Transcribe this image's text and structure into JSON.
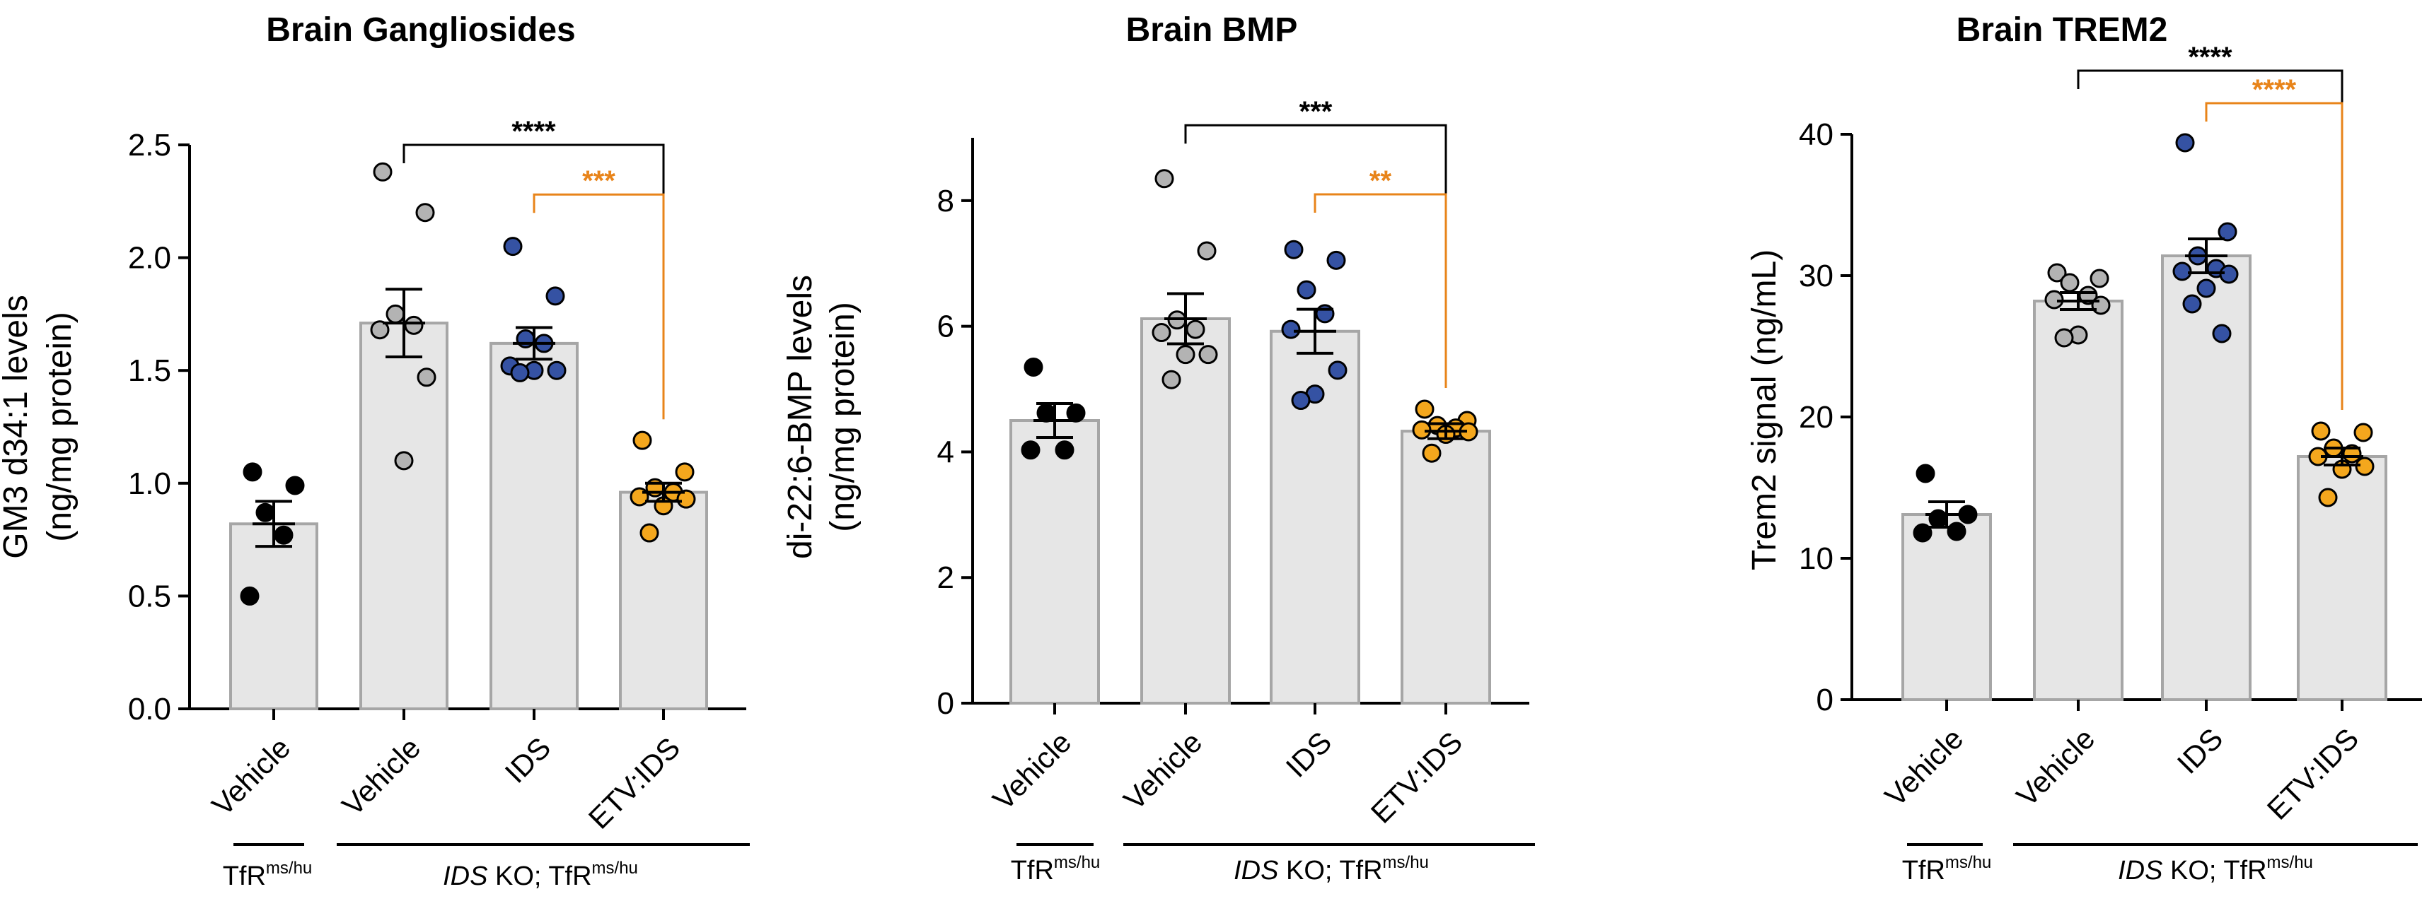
{
  "chart_data": [
    {
      "type": "bar",
      "title": "Brain Gangliosides",
      "ylabel_line1": "GM3 d34:1 levels",
      "ylabel_line2": "(ng/mg protein)",
      "ylim": [
        0,
        2.5
      ],
      "yticks": [
        "0.0",
        "0.5",
        "1.0",
        "1.5",
        "2.0",
        "2.5"
      ],
      "categories": [
        "Vehicle",
        "Vehicle",
        "IDS",
        "ETV:IDS"
      ],
      "group_labels": [
        {
          "main": "TfR",
          "sup": "ms/hu"
        },
        {
          "italic": "IDS",
          "main": " KO; TfR",
          "sup": "ms/hu"
        }
      ],
      "means": [
        0.82,
        1.71,
        1.62,
        0.96
      ],
      "sems": [
        0.1,
        0.15,
        0.07,
        0.04
      ],
      "points": [
        [
          1.05,
          0.99,
          0.87,
          0.77,
          0.5
        ],
        [
          2.38,
          2.2,
          1.75,
          1.7,
          1.68,
          1.47,
          1.1
        ],
        [
          2.05,
          1.83,
          1.64,
          1.62,
          1.52,
          1.5,
          1.5,
          1.49
        ],
        [
          1.19,
          1.05,
          0.98,
          0.96,
          0.94,
          0.93,
          0.9,
          0.78
        ]
      ],
      "point_colors": [
        "#000000",
        "#b3b3b3",
        "#3552a3",
        "#f4a71d"
      ],
      "significance": [
        {
          "from": 1,
          "to": 3,
          "label": "****",
          "color": "#000000",
          "y": 2.5
        },
        {
          "from": 2,
          "to": 3,
          "label": "***",
          "color": "#e8841a",
          "y": 2.28
        }
      ]
    },
    {
      "type": "bar",
      "title": "Brain BMP",
      "ylabel_line1": "di-22:6-BMP levels",
      "ylabel_line2": "(ng/mg protein)",
      "ylim": [
        0,
        9
      ],
      "yticks": [
        "0",
        "2",
        "4",
        "6",
        "8"
      ],
      "categories": [
        "Vehicle",
        "Vehicle",
        "IDS",
        "ETV:IDS"
      ],
      "group_labels": [
        {
          "main": "TfR",
          "sup": "ms/hu"
        },
        {
          "italic": "IDS",
          "main": " KO; TfR",
          "sup": "ms/hu"
        }
      ],
      "means": [
        4.5,
        6.12,
        5.92,
        4.33
      ],
      "sems": [
        0.27,
        0.4,
        0.35,
        0.12
      ],
      "points": [
        [
          5.35,
          4.62,
          4.62,
          4.03,
          4.03
        ],
        [
          8.35,
          7.2,
          6.1,
          5.95,
          5.9,
          5.55,
          5.55,
          5.15
        ],
        [
          7.22,
          7.05,
          6.58,
          6.2,
          5.95,
          5.3,
          4.92,
          4.82
        ],
        [
          4.68,
          4.5,
          4.42,
          4.38,
          4.35,
          4.32,
          4.28,
          3.98
        ]
      ],
      "point_colors": [
        "#000000",
        "#b3b3b3",
        "#3552a3",
        "#f4a71d"
      ],
      "significance": [
        {
          "from": 1,
          "to": 3,
          "label": "***",
          "color": "#000000",
          "y": 9.2
        },
        {
          "from": 2,
          "to": 3,
          "label": "**",
          "color": "#e8841a",
          "y": 8.1
        }
      ]
    },
    {
      "type": "bar",
      "title": "Brain TREM2",
      "ylabel_line1": "Trem2 signal (ng/mL)",
      "ylabel_line2": "",
      "ylim": [
        0,
        40
      ],
      "yticks": [
        "0",
        "10",
        "20",
        "30",
        "40"
      ],
      "categories": [
        "Vehicle",
        "Vehicle",
        "IDS",
        "ETV:IDS"
      ],
      "group_labels": [
        {
          "main": "TfR",
          "sup": "ms/hu"
        },
        {
          "italic": "IDS",
          "main": " KO; TfR",
          "sup": "ms/hu"
        }
      ],
      "means": [
        13.1,
        28.2,
        31.4,
        17.2
      ],
      "sems": [
        0.9,
        0.6,
        1.2,
        0.6
      ],
      "points": [
        [
          16.0,
          13.1,
          12.8,
          11.9,
          11.8
        ],
        [
          30.2,
          29.8,
          29.5,
          28.6,
          28.3,
          27.9,
          25.8,
          25.6
        ],
        [
          39.4,
          33.1,
          31.4,
          30.5,
          30.3,
          30.1,
          29.1,
          28.0,
          25.9
        ],
        [
          19.0,
          18.9,
          17.8,
          17.4,
          17.2,
          16.5,
          16.3,
          14.3
        ]
      ],
      "point_colors": [
        "#000000",
        "#b3b3b3",
        "#3552a3",
        "#f4a71d"
      ],
      "significance": [
        {
          "from": 1,
          "to": 3,
          "label": "****",
          "color": "#000000",
          "y": 44.5
        },
        {
          "from": 2,
          "to": 3,
          "label": "****",
          "color": "#e8841a",
          "y": 42.2
        }
      ]
    }
  ]
}
